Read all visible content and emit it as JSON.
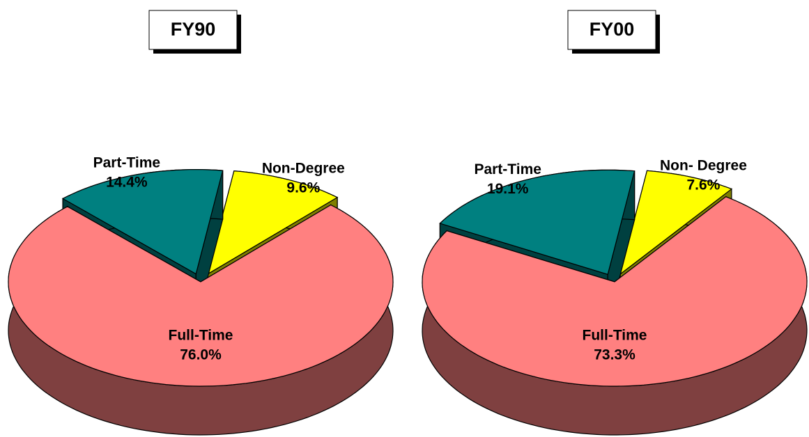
{
  "chart_data": [
    {
      "type": "pie",
      "title": "FY90",
      "categories": [
        "Non-Degree",
        "Full-Time",
        "Part-Time"
      ],
      "values": [
        9.6,
        76.0,
        14.4
      ],
      "value_labels": [
        "9.6%",
        "76.0%",
        "14.4%"
      ],
      "colors": [
        "#ffff00",
        "#ff8080",
        "#008080"
      ]
    },
    {
      "type": "pie",
      "title": "FY00",
      "categories": [
        "Non- Degree",
        "Full-Time",
        "Part-Time"
      ],
      "values": [
        7.6,
        73.3,
        19.1
      ],
      "value_labels": [
        "7.6%",
        "73.3%",
        "19.1%"
      ],
      "colors": [
        "#ffff00",
        "#ff8080",
        "#008080"
      ]
    }
  ]
}
